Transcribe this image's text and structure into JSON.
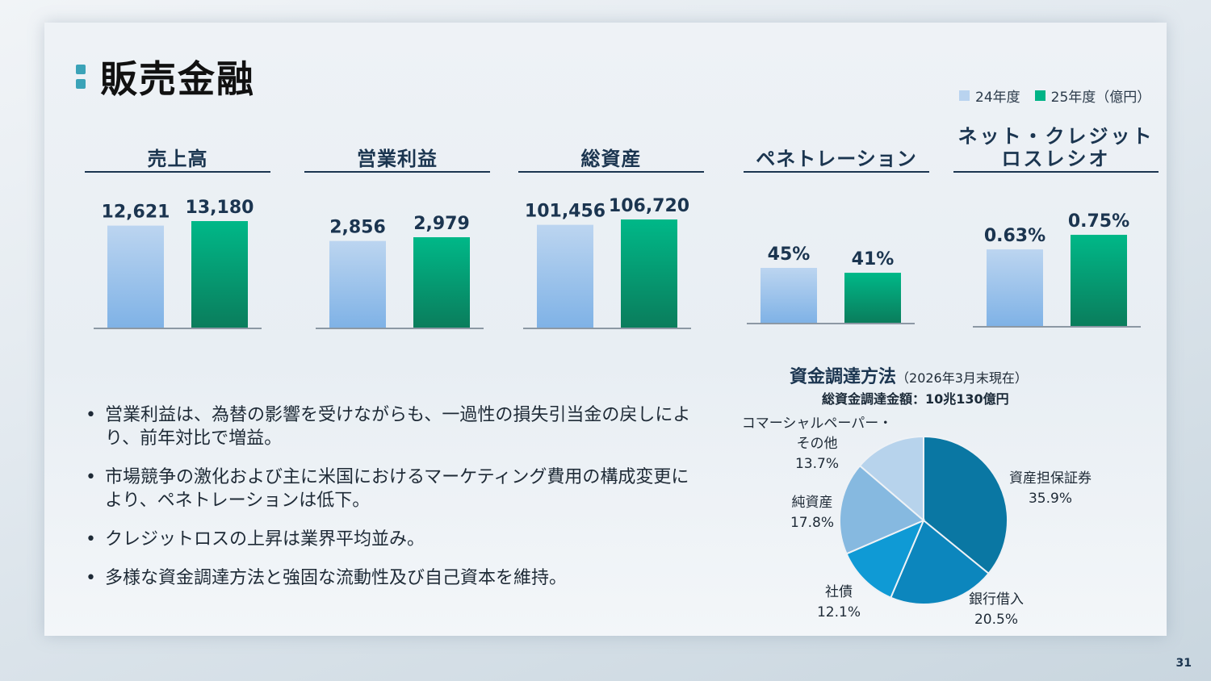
{
  "page": {
    "title": "販売金融",
    "page_number": "31"
  },
  "legend": [
    {
      "label": "24年度",
      "color": "#b9d3ef"
    },
    {
      "label": "25年度（億円）",
      "color": "#00b386"
    }
  ],
  "colors": {
    "fy24_top": "#bcd5f0",
    "fy24_bottom": "#7fb2e6",
    "fy25_top": "#00b888",
    "fy25_bottom": "#0a7d5c",
    "header": "#1b3550",
    "value": "#1b3550"
  },
  "chart_data": [
    {
      "type": "bar",
      "title": "売上高",
      "categories": [
        "24年度",
        "25年度"
      ],
      "values": [
        12621,
        13180
      ],
      "labels": [
        "12,621",
        "13,180"
      ]
    },
    {
      "type": "bar",
      "title": "営業利益",
      "categories": [
        "24年度",
        "25年度"
      ],
      "values": [
        2856,
        2979
      ],
      "labels": [
        "2,856",
        "2,979"
      ]
    },
    {
      "type": "bar",
      "title": "総資産",
      "categories": [
        "24年度",
        "25年度"
      ],
      "values": [
        101456,
        106720
      ],
      "labels": [
        "101,456",
        "106,720"
      ]
    },
    {
      "type": "bar",
      "title": "ペネトレーション",
      "categories": [
        "24年度",
        "25年度"
      ],
      "values": [
        45,
        41
      ],
      "labels": [
        "45%",
        "41%"
      ]
    },
    {
      "type": "bar",
      "title": "ネット・クレジット\nロスレシオ",
      "categories": [
        "24年度",
        "25年度"
      ],
      "values": [
        0.63,
        0.75
      ],
      "labels": [
        "0.63%",
        "0.75%"
      ]
    },
    {
      "type": "pie",
      "title": "資金調達方法",
      "subtitle": "（2026年3月末現在）",
      "total": "総資金調達金額：10兆130億円",
      "slices": [
        {
          "label": "資産担保証券",
          "value": 35.9,
          "value_label": "35.9%",
          "color": "#0a77a3"
        },
        {
          "label": "銀行借入",
          "value": 20.5,
          "value_label": "20.5%",
          "color": "#0c86bd"
        },
        {
          "label": "社債",
          "value": 12.1,
          "value_label": "12.1%",
          "color": "#0f9ad5"
        },
        {
          "label": "純資産",
          "value": 17.8,
          "value_label": "17.8%",
          "color": "#86b9e0"
        },
        {
          "label": "コマーシャルペーパー・\nその他",
          "value": 13.7,
          "value_label": "13.7%",
          "color": "#b7d3ec"
        }
      ]
    }
  ],
  "bullets": [
    "営業利益は、為替の影響を受けながらも、一過性の損失引当金の戻しにより、前年対比で増益。",
    "市場競争の激化および主に米国におけるマーケティング費用の構成変更により、ペネトレーションは低下。",
    "クレジットロスの上昇は業界平均並み。",
    "多様な資金調達方法と強固な流動性及び自己資本を維持。"
  ]
}
